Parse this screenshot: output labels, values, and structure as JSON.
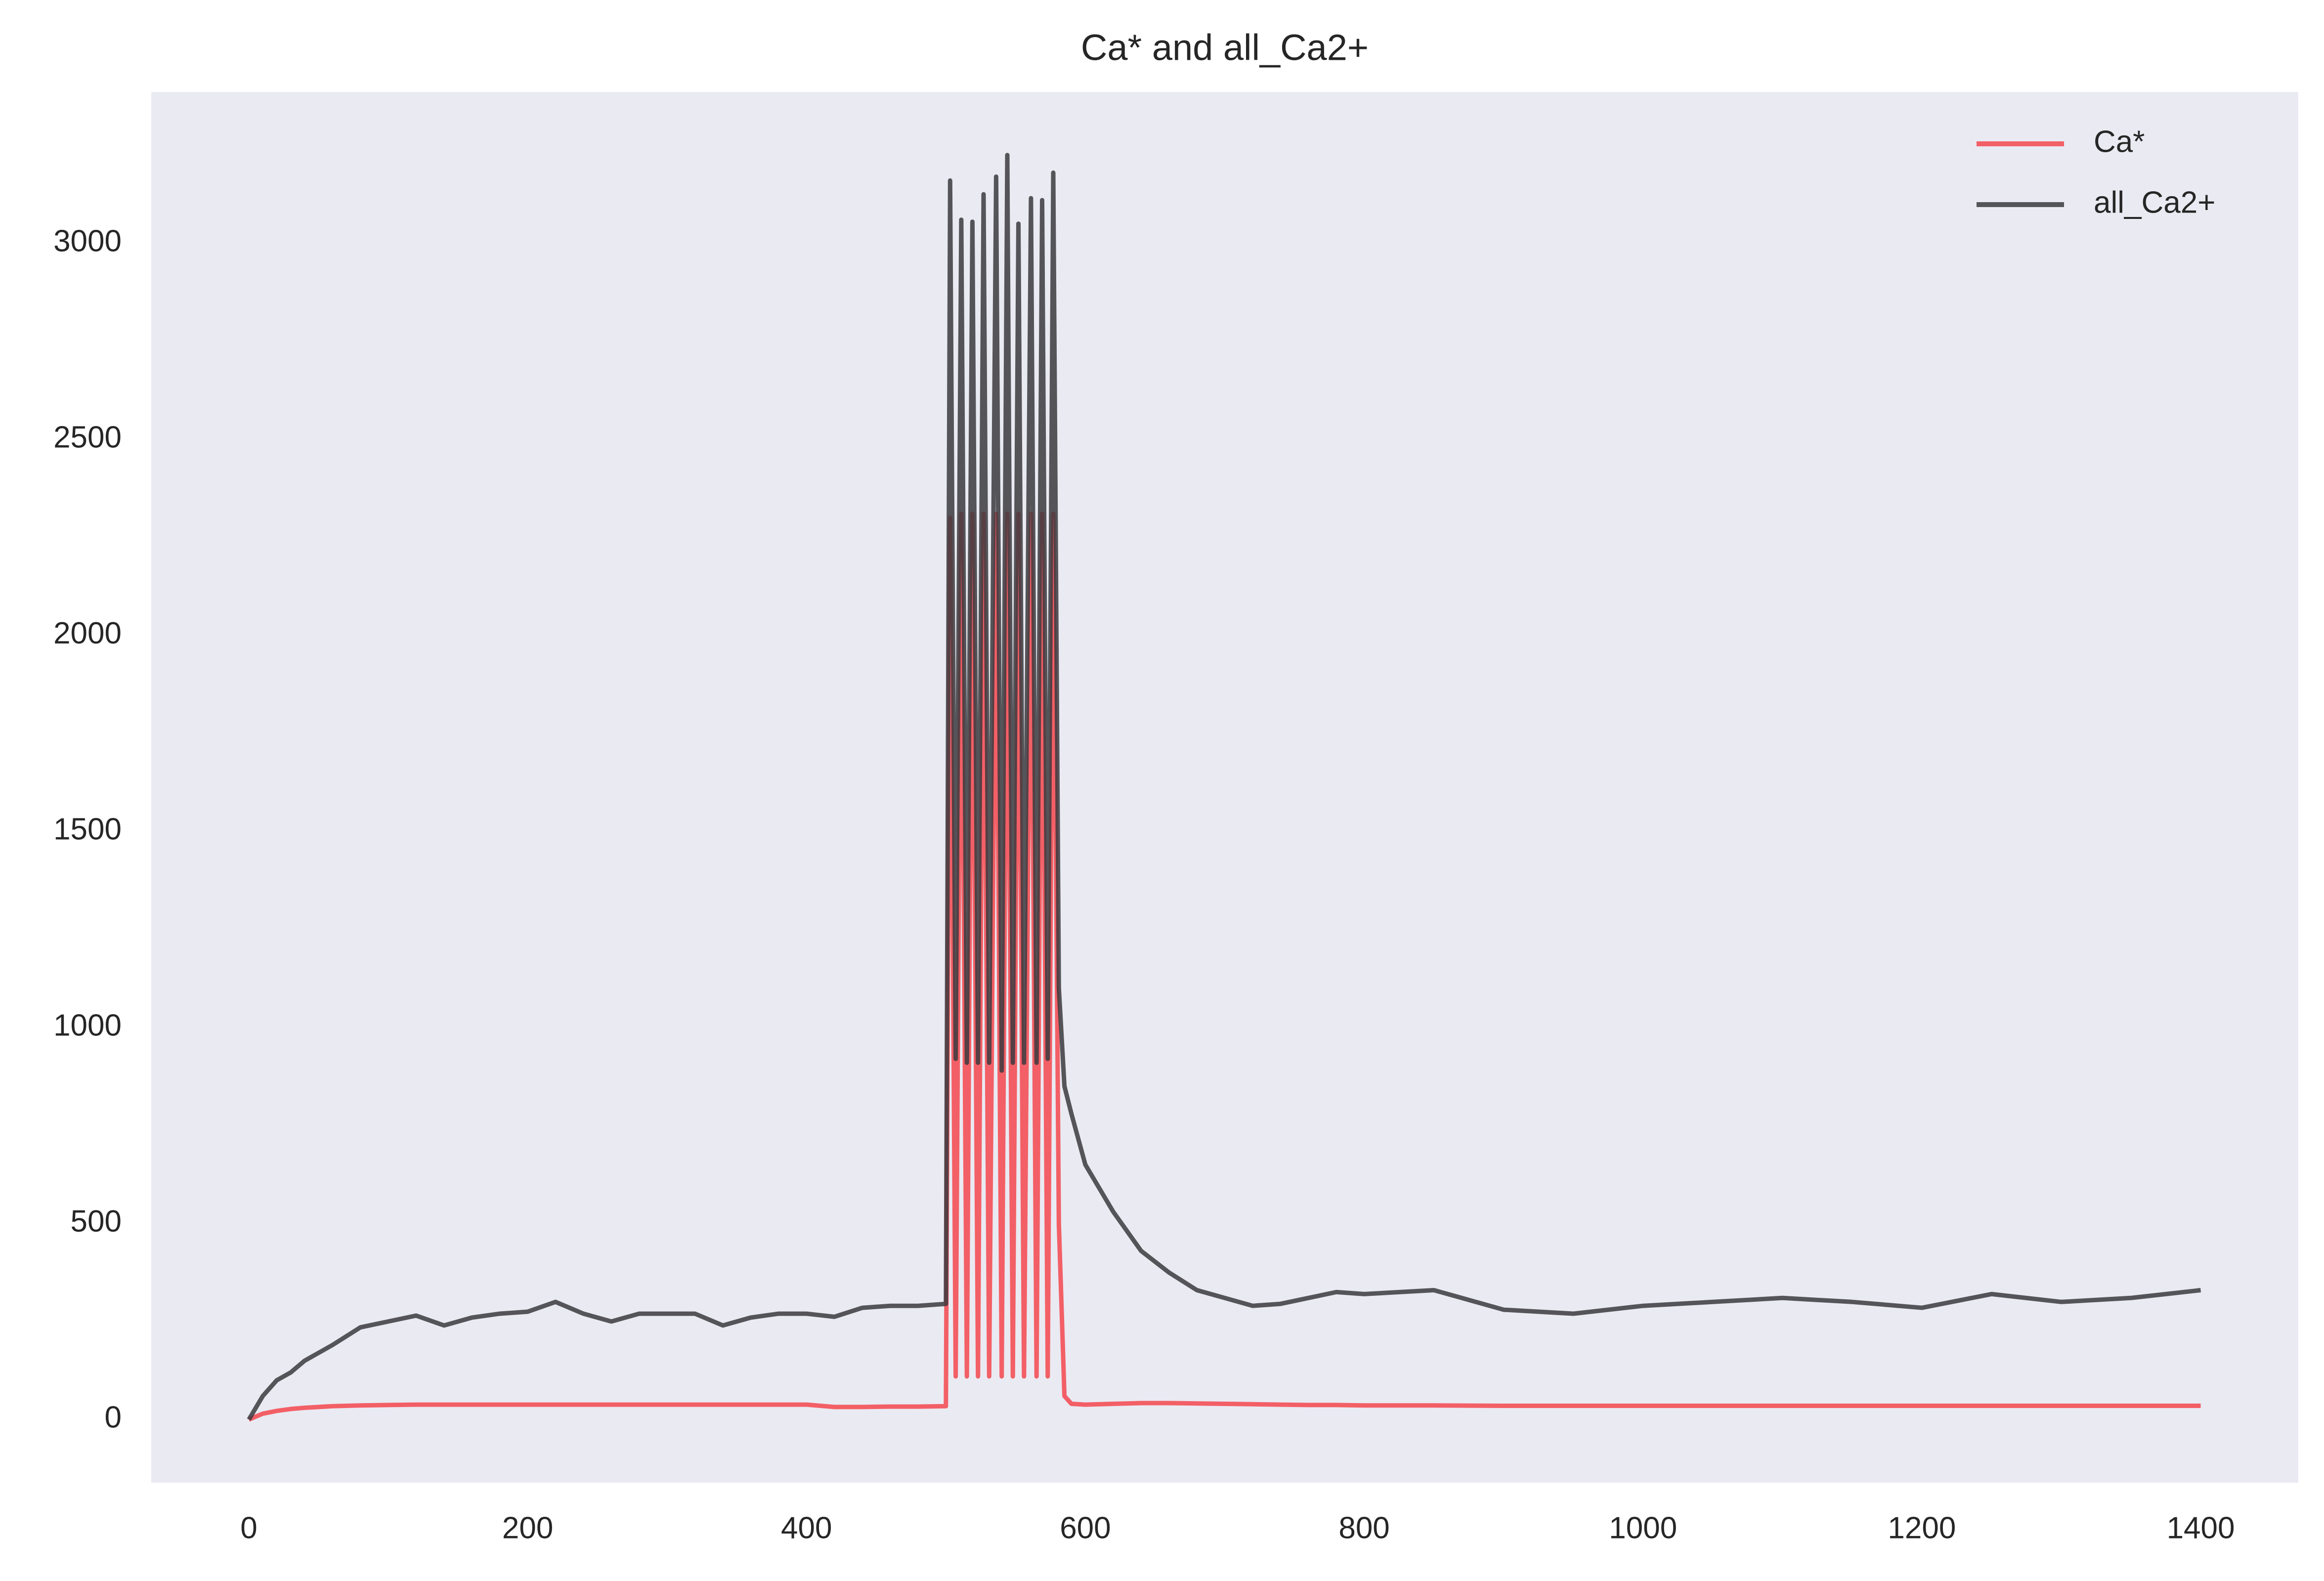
{
  "chart_data": {
    "type": "line",
    "title": "Ca* and all_Ca2+",
    "x": [
      0,
      10,
      20,
      30,
      40,
      60,
      80,
      100,
      120,
      140,
      160,
      180,
      200,
      220,
      240,
      260,
      280,
      300,
      320,
      340,
      360,
      380,
      400,
      420,
      440,
      460,
      480,
      500,
      503,
      507,
      511,
      515,
      519,
      523,
      527,
      531,
      536,
      540,
      544,
      548,
      552,
      556,
      561,
      565,
      569,
      573,
      577,
      581,
      585,
      590,
      600,
      620,
      640,
      660,
      680,
      700,
      720,
      740,
      760,
      780,
      800,
      850,
      900,
      950,
      1000,
      1050,
      1100,
      1150,
      1200,
      1250,
      1300,
      1350,
      1400
    ],
    "series": [
      {
        "name": "Ca*",
        "color": "#f4474d",
        "values": [
          0,
          15,
          22,
          27,
          30,
          34,
          36,
          37,
          38,
          38,
          38,
          38,
          38,
          38,
          38,
          38,
          38,
          38,
          38,
          38,
          38,
          38,
          38,
          32,
          32,
          33,
          33,
          34,
          2300,
          110,
          2310,
          110,
          2310,
          110,
          2310,
          110,
          2310,
          110,
          2310,
          110,
          2310,
          110,
          2310,
          110,
          2310,
          110,
          2310,
          500,
          60,
          40,
          38,
          40,
          42,
          42,
          41,
          40,
          39,
          38,
          37,
          37,
          36,
          36,
          35,
          35,
          35,
          35,
          35,
          35,
          35,
          35,
          35,
          35,
          35
        ]
      },
      {
        "name": "all_Ca2+",
        "color": "#3a3a3e",
        "values": [
          0,
          60,
          100,
          120,
          150,
          190,
          235,
          250,
          265,
          240,
          260,
          270,
          275,
          300,
          270,
          250,
          270,
          270,
          270,
          240,
          260,
          270,
          270,
          262,
          285,
          290,
          290,
          295,
          3160,
          920,
          3060,
          910,
          3055,
          910,
          3125,
          910,
          3170,
          890,
          3225,
          910,
          3050,
          910,
          3115,
          910,
          3110,
          920,
          3180,
          1100,
          850,
          780,
          650,
          530,
          430,
          375,
          330,
          310,
          290,
          295,
          310,
          325,
          320,
          330,
          280,
          270,
          290,
          300,
          310,
          300,
          285,
          320,
          300,
          310,
          330
        ]
      }
    ],
    "xlim": [
      -70,
      1470
    ],
    "ylim": [
      -161,
      3386
    ],
    "xticks": [
      0,
      200,
      400,
      600,
      800,
      1000,
      1200,
      1400
    ],
    "yticks": [
      0,
      500,
      1000,
      1500,
      2000,
      2500,
      3000
    ],
    "grid": false,
    "legend": "upper right"
  }
}
